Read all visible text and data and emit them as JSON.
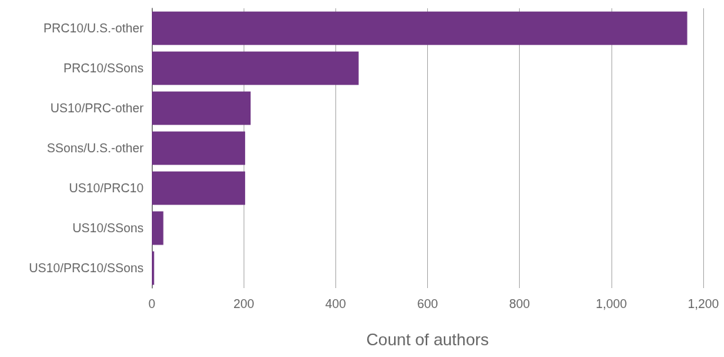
{
  "chart_data": {
    "type": "bar",
    "orientation": "horizontal",
    "xlabel": "Count of authors",
    "categories": [
      "PRC10/U.S.-other",
      "PRC10/SSons",
      "US10/PRC-other",
      "SSons/U.S.-other",
      "US10/PRC10",
      "US10/SSons",
      "US10/PRC10/SSons"
    ],
    "values": [
      1165,
      450,
      215,
      203,
      203,
      25,
      5
    ],
    "color": "#703585",
    "xlim": [
      0,
      1200
    ],
    "xticks": [
      0,
      200,
      400,
      600,
      800,
      {
        "value": 1000,
        "label": "1,000"
      },
      {
        "value": 1200,
        "label": "1,200"
      }
    ],
    "grid": "x"
  }
}
